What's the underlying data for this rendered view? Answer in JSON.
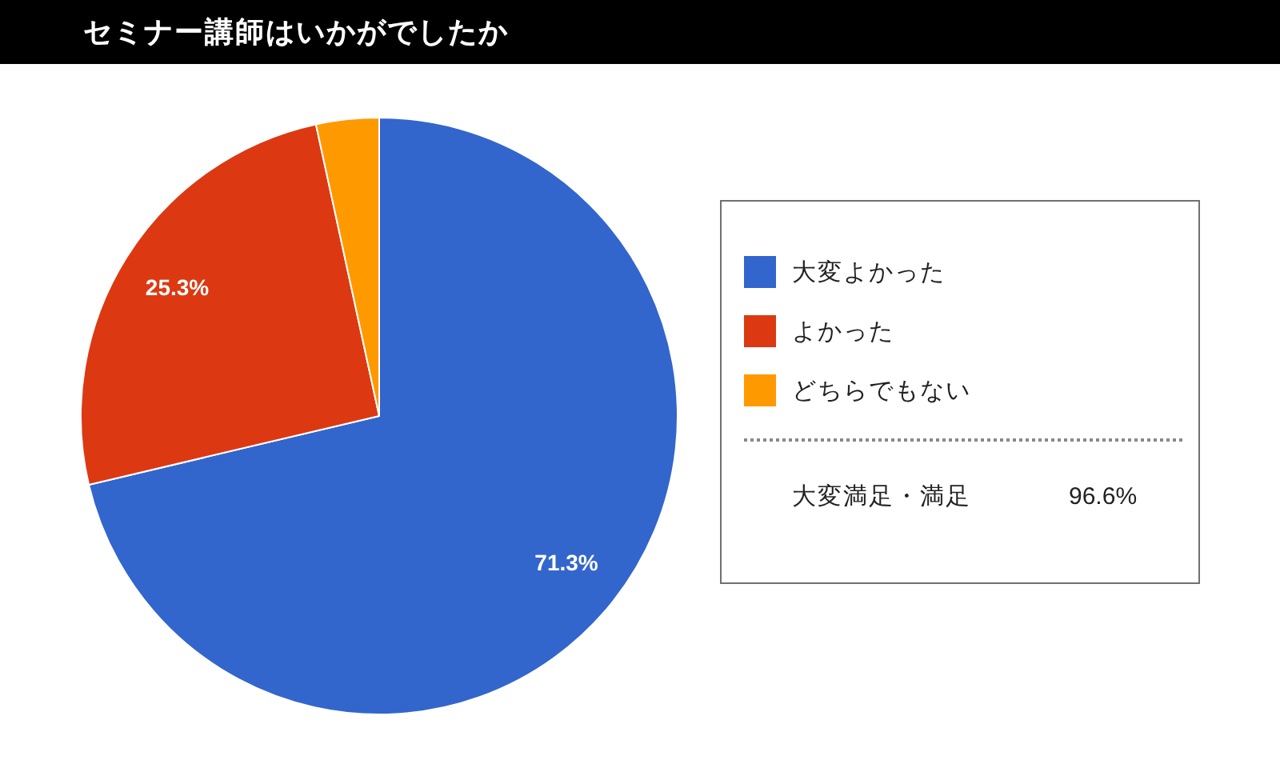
{
  "chart_data": {
    "type": "pie",
    "title": "セミナー講師はいかがでしたか",
    "categories": [
      "大変よかった",
      "よかった",
      "どちらでもない"
    ],
    "values": [
      71.3,
      25.3,
      3.4
    ],
    "colors": [
      "#3366cc",
      "#dc3912",
      "#ff9900"
    ],
    "value_labels": [
      "71.3%",
      "25.3%",
      null
    ],
    "legend": "right",
    "annotations": [
      "大変満足・満足",
      "96.6%"
    ]
  }
}
